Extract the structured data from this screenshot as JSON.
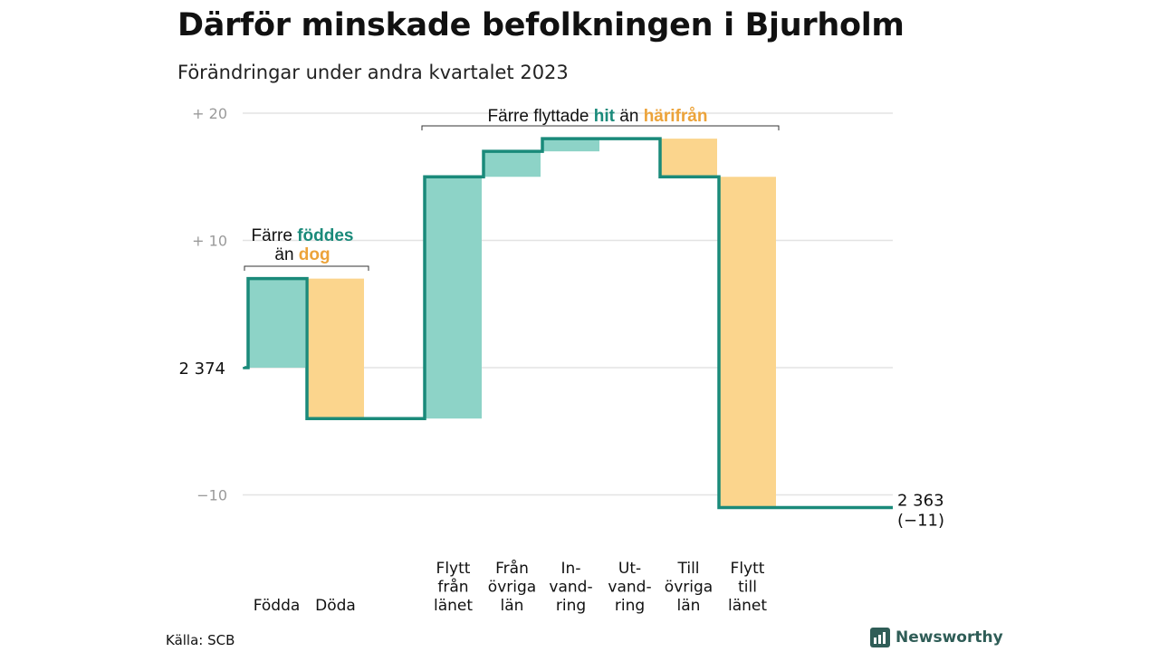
{
  "title": "Därför minskade befolkningen i Bjurholm",
  "subtitle": "Förändringar under andra kvartalet 2023",
  "source": "Källa: SCB",
  "brand": "Newsworthy",
  "colors": {
    "increase": "#8dd3c7",
    "decrease": "#fbd58d",
    "line": "#1a8a7a",
    "teal_text": "#1a8a7a",
    "orange_text": "#eca33a",
    "grid": "#e3e3e3",
    "tick": "#9a9a9a"
  },
  "chart_data": {
    "type": "waterfall",
    "title": "Därför minskade befolkningen i Bjurholm",
    "subtitle": "Förändringar under andra kvartalet 2023",
    "start": {
      "value": 2374,
      "label": "2 374"
    },
    "end": {
      "value": 2363,
      "label": "2 363",
      "change_label": "(−11)"
    },
    "y_ticks": [
      {
        "value": 20,
        "label": "+  20"
      },
      {
        "value": 10,
        "label": "+  10"
      },
      {
        "value": -10,
        "label": "−10"
      }
    ],
    "ylim": [
      -12,
      21
    ],
    "steps": [
      {
        "category": [
          "Födda"
        ],
        "change": 7,
        "kind": "increase"
      },
      {
        "category": [
          "Döda"
        ],
        "change": -11,
        "kind": "decrease"
      },
      {
        "category": [],
        "change": 0,
        "kind": "gap"
      },
      {
        "category": [
          "Flytt",
          "från",
          "länet"
        ],
        "change": 19,
        "kind": "increase"
      },
      {
        "category": [
          "Från",
          "övriga",
          "län"
        ],
        "change": 2,
        "kind": "increase"
      },
      {
        "category": [
          "In-",
          "vand-",
          "ring"
        ],
        "change": 1,
        "kind": "increase"
      },
      {
        "category": [
          "Ut-",
          "vand-",
          "ring"
        ],
        "change": 0,
        "kind": "increase"
      },
      {
        "category": [
          "Till",
          "övriga",
          "län"
        ],
        "change": -3,
        "kind": "decrease"
      },
      {
        "category": [
          "Flytt",
          "till",
          "länet"
        ],
        "change": -26,
        "kind": "decrease"
      }
    ],
    "annotations": [
      {
        "parts": [
          {
            "text": "Färre ",
            "color": "dark"
          },
          {
            "text": "föddes",
            "color": "teal"
          }
        ],
        "parts2": [
          {
            "text": "än ",
            "color": "dark"
          },
          {
            "text": "dog",
            "color": "orange"
          }
        ]
      },
      {
        "parts": [
          {
            "text": "Färre flyttade ",
            "color": "dark"
          },
          {
            "text": "hit",
            "color": "teal"
          },
          {
            "text": " än ",
            "color": "dark"
          },
          {
            "text": "härifrån",
            "color": "orange"
          }
        ]
      }
    ]
  }
}
